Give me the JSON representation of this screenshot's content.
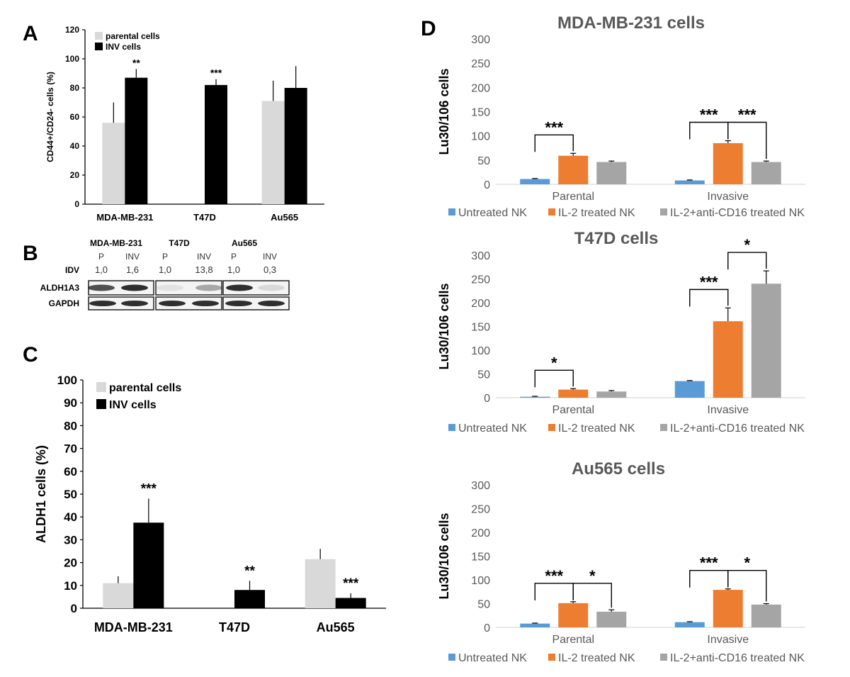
{
  "panels": {
    "A": {
      "letter": "A"
    },
    "B": {
      "letter": "B",
      "col_headers": [
        "MDA-MB-231",
        "T47D",
        "Au565"
      ],
      "lane_labels": [
        "P",
        "INV",
        "P",
        "INV",
        "P",
        "INV"
      ],
      "row_labels": [
        "IDV",
        "ALDH1A3",
        "GAPDH"
      ],
      "idv_values": [
        "1,0",
        "1,6",
        "1,0",
        "13,8",
        "1,0",
        "0,3"
      ]
    },
    "C": {
      "letter": "C"
    },
    "D": {
      "letter": "D"
    }
  },
  "colors": {
    "parental": "#d9d9d9",
    "inv": "#000000",
    "untreated": "#5b9bd5",
    "il2": "#ed7d31",
    "il2_cd16": "#a5a5a5"
  },
  "chart_data": [
    {
      "id": "A",
      "type": "bar",
      "categories": [
        "MDA-MB-231",
        "T47D",
        "Au565"
      ],
      "series": [
        {
          "name": "parental cells",
          "values": [
            56,
            null,
            71
          ],
          "errors": [
            14,
            null,
            14
          ]
        },
        {
          "name": "INV cells",
          "values": [
            87,
            82,
            80
          ],
          "errors": [
            6,
            4,
            15
          ]
        }
      ],
      "significance": [
        "**",
        "***",
        ""
      ],
      "ylabel": "CD44+/CD24- cells (%)",
      "ylim": [
        0,
        120
      ],
      "yticks": [
        0,
        20,
        40,
        60,
        80,
        100,
        120
      ],
      "legend": "top-left"
    },
    {
      "id": "C",
      "type": "bar",
      "categories": [
        "MDA-MB-231",
        "T47D",
        "Au565"
      ],
      "series": [
        {
          "name": "parental cells",
          "values": [
            11,
            0,
            21.5
          ],
          "errors": [
            3,
            0,
            4.5
          ]
        },
        {
          "name": "INV cells",
          "values": [
            37.5,
            8,
            4.5
          ],
          "errors": [
            10.5,
            4,
            2
          ]
        }
      ],
      "significance": [
        "***",
        "**",
        "***"
      ],
      "ylabel": "ALDH1 cells (%)",
      "ylim": [
        0,
        100
      ],
      "yticks": [
        0,
        10,
        20,
        30,
        40,
        50,
        60,
        70,
        80,
        90,
        100
      ],
      "legend": "top-left"
    },
    {
      "id": "D1",
      "type": "bar",
      "title": "MDA-MB-231 cells",
      "categories": [
        "Parental",
        "Invasive"
      ],
      "series": [
        {
          "name": "Untreated NK",
          "values": [
            11,
            8
          ],
          "errors": [
            1,
            1
          ]
        },
        {
          "name": "IL-2 treated NK",
          "values": [
            59,
            85
          ],
          "errors": [
            5,
            5
          ]
        },
        {
          "name": "IL-2+anti-CD16 treated NK",
          "values": [
            46,
            46
          ],
          "errors": [
            2,
            2
          ]
        }
      ],
      "brackets": [
        {
          "group": 0,
          "from": 0,
          "to": 1,
          "label": "***"
        },
        {
          "group": 1,
          "from": 0,
          "to": 1,
          "label": "***"
        },
        {
          "group": 1,
          "from": 1,
          "to": 2,
          "label": "***"
        }
      ],
      "ylabel": "Lu30/106 cells",
      "ylim": [
        0,
        300
      ],
      "yticks": [
        0,
        50,
        100,
        150,
        200,
        250,
        300
      ],
      "legend": "bottom"
    },
    {
      "id": "D2",
      "type": "bar",
      "title": "T47D cells",
      "categories": [
        "Parental",
        "Invasive"
      ],
      "series": [
        {
          "name": "Untreated NK",
          "values": [
            2,
            35
          ],
          "errors": [
            1,
            1
          ]
        },
        {
          "name": "IL-2 treated NK",
          "values": [
            17,
            161
          ],
          "errors": [
            2,
            28
          ]
        },
        {
          "name": "IL-2+anti-CD16 treated NK",
          "values": [
            13,
            240
          ],
          "errors": [
            2,
            27
          ]
        }
      ],
      "brackets": [
        {
          "group": 0,
          "from": 0,
          "to": 1,
          "label": "*"
        },
        {
          "group": 1,
          "from": 0,
          "to": 1,
          "label": "***"
        },
        {
          "group": 1,
          "from": 1,
          "to": 2,
          "label": "*"
        }
      ],
      "ylabel": "Lu30/106 cells",
      "ylim": [
        0,
        300
      ],
      "yticks": [
        0,
        50,
        100,
        150,
        200,
        250,
        300
      ],
      "legend": "bottom"
    },
    {
      "id": "D3",
      "type": "bar",
      "title": "Au565 cells",
      "categories": [
        "Parental",
        "Invasive"
      ],
      "series": [
        {
          "name": "Untreated NK",
          "values": [
            8,
            11
          ],
          "errors": [
            1,
            1
          ]
        },
        {
          "name": "IL-2 treated NK",
          "values": [
            51,
            79
          ],
          "errors": [
            3,
            2
          ]
        },
        {
          "name": "IL-2+anti-CD16 treated NK",
          "values": [
            33,
            48
          ],
          "errors": [
            4,
            2
          ]
        }
      ],
      "brackets": [
        {
          "group": 0,
          "from": 0,
          "to": 1,
          "label": "***"
        },
        {
          "group": 0,
          "from": 1,
          "to": 2,
          "label": "*"
        },
        {
          "group": 1,
          "from": 0,
          "to": 1,
          "label": "***"
        },
        {
          "group": 1,
          "from": 1,
          "to": 2,
          "label": "*"
        }
      ],
      "ylabel": "Lu30/106 cells",
      "ylim": [
        0,
        300
      ],
      "yticks": [
        0,
        50,
        100,
        150,
        200,
        250,
        300
      ],
      "legend": "bottom"
    }
  ]
}
